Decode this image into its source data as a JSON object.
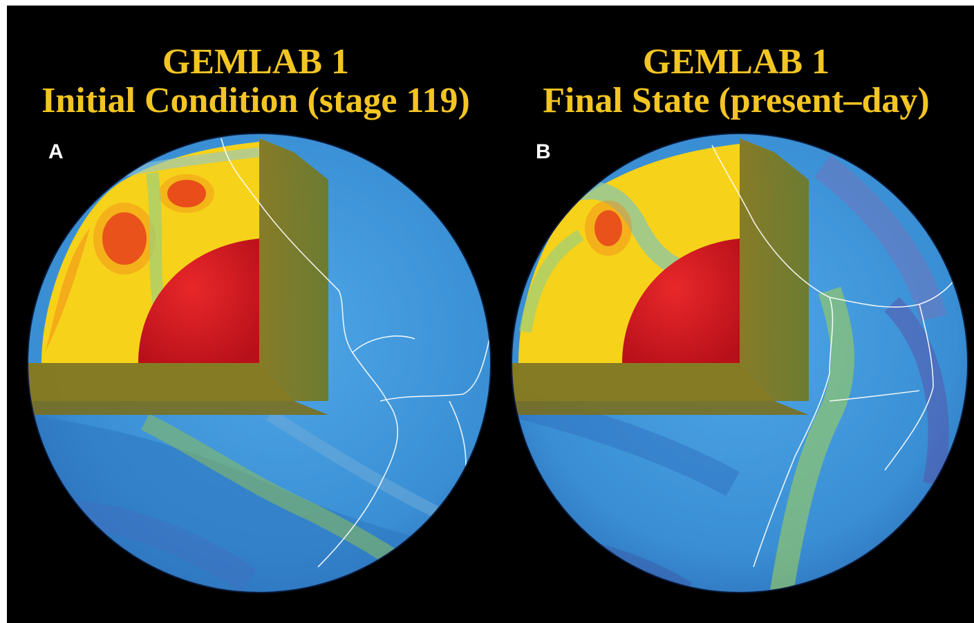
{
  "panels": [
    {
      "letter": "A",
      "title_line1": "GEMLAB 1",
      "title_line2": "Initial Condition (stage 119)"
    },
    {
      "letter": "B",
      "title_line1": "GEMLAB 1",
      "title_line2": "Final State (present–day)"
    }
  ],
  "colors": {
    "background": "#000000",
    "title": "#f3c523",
    "core": "#d81a1c",
    "hot_mantle": "#f7d21a",
    "cold_mantle": "#3b8fd6",
    "coastline": "#ffffff"
  }
}
